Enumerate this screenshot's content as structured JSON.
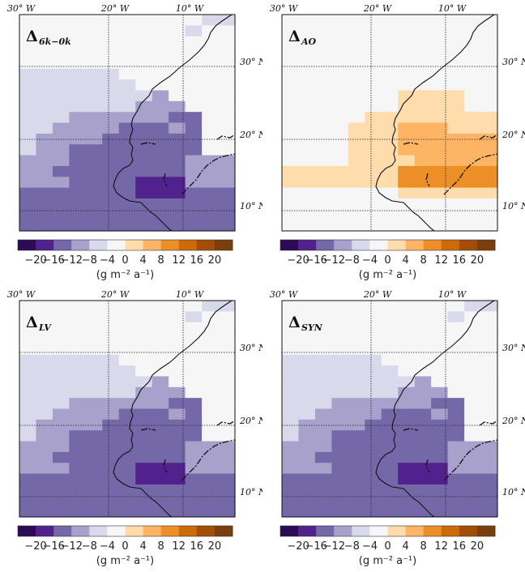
{
  "colorbar": {
    "colors": [
      "#2d0a56",
      "#51228d",
      "#7468a8",
      "#a8a1cc",
      "#d9d9ec",
      "#f6f6f6",
      "#fedcac",
      "#fdb565",
      "#ec8f26",
      "#cd6a09",
      "#a24e08",
      "#7b3f0d"
    ],
    "tick_labels": [
      "−20",
      "−16",
      "−12",
      "−8",
      "−4",
      "0",
      "4",
      "8",
      "12",
      "16",
      "20"
    ],
    "unit_label": "(g m⁻² a⁻¹)"
  },
  "axes": {
    "lon_labels": [
      "30° W",
      "20° W",
      "10° W"
    ],
    "lat_labels": [
      "30° N",
      "20° N",
      "10° N"
    ]
  },
  "panels": [
    {
      "title_main": "Δ",
      "title_sub": "6k−0k",
      "grid": [
        "5555555555544",
        "5555555555455",
        "5555555555555",
        "5555555555555",
        "5555555555555",
        "4444445555555",
        "4444444555555",
        "4444444435555",
        "4444444333555",
        "4443333332255",
        "4433332223255",
        "4333322222255",
        "4332222222255",
        "3332222222333",
        "3322222222333",
        "3332222111333",
        "2222222111222",
        "2222222222222",
        "2222222222222",
        "2222222222222"
      ]
    },
    {
      "title_main": "Δ",
      "title_sub": "AO",
      "grid": [
        "5555555555555",
        "5555555555555",
        "5555555555555",
        "5555555555555",
        "5555555555555",
        "5555555555555",
        "5555555555555",
        "5555555666655",
        "5555555666655",
        "5555566666666",
        "5555666777666",
        "5555666777777",
        "5555666777777",
        "5555666677777",
        "6666666888888",
        "6666666888888",
        "5555555666666",
        "5555555555555",
        "5555555555555",
        "5555555555555"
      ]
    },
    {
      "title_main": "Δ",
      "title_sub": "LV",
      "grid": [
        "5555555555544",
        "5555555555455",
        "5555555555555",
        "5555555555555",
        "5555555555555",
        "4444445555555",
        "4444444555555",
        "4444444435555",
        "4444444333555",
        "4443333332255",
        "4433332223255",
        "4333322222255",
        "4332222222255",
        "3332222222333",
        "3322222222333",
        "3332222111333",
        "2222222111222",
        "2222222222222",
        "2222222222222",
        "2222222222222"
      ]
    },
    {
      "title_main": "Δ",
      "title_sub": "SYN",
      "grid": [
        "5555555555544",
        "5555555555455",
        "5555555555555",
        "5555555555555",
        "5555555555555",
        "4444445555555",
        "4444444555555",
        "4444444435555",
        "4444444333555",
        "4443333332255",
        "4433332223255",
        "4333322222255",
        "4332222222255",
        "3332222222333",
        "3322222222333",
        "3332222111333",
        "2222222111222",
        "2222222222222",
        "2222222222222",
        "2222222222222"
      ]
    }
  ]
}
